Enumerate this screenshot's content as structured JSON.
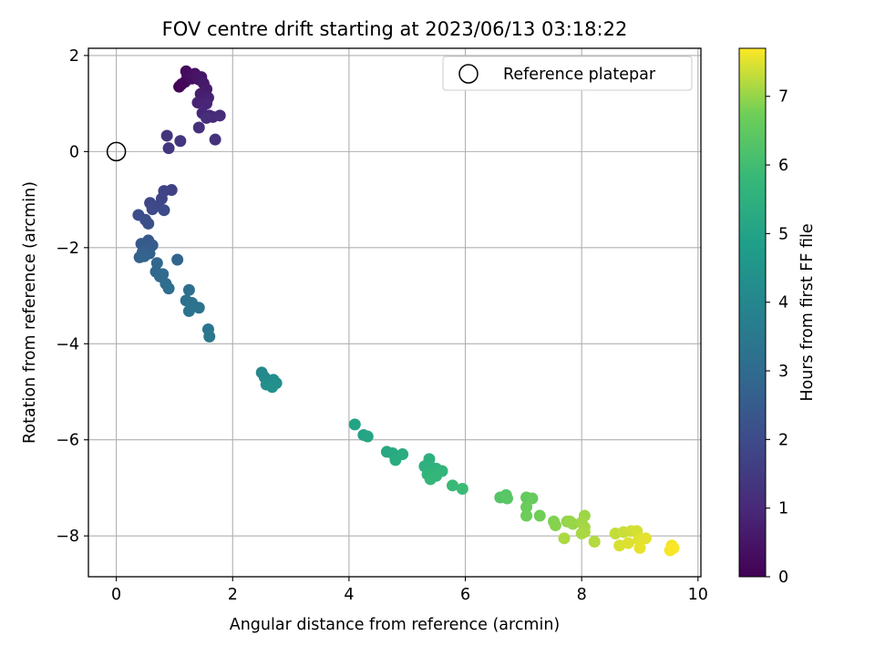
{
  "chart_data": {
    "type": "scatter",
    "title": "FOV centre drift starting at 2023/06/13 03:18:22",
    "xlabel": "Angular distance from reference (arcmin)",
    "ylabel": "Rotation from reference (arcmin)",
    "xlim": [
      -0.48,
      10.05
    ],
    "ylim": [
      -8.85,
      2.15
    ],
    "xticks": [
      0,
      2,
      4,
      6,
      8,
      10
    ],
    "xtick_labels": [
      "0",
      "2",
      "4",
      "6",
      "8",
      "10"
    ],
    "yticks": [
      2,
      0,
      -2,
      -4,
      -6,
      -8
    ],
    "ytick_labels": [
      "2",
      "0",
      "−2",
      "−4",
      "−6",
      "−8"
    ],
    "grid": true,
    "legend": {
      "location": "top-right",
      "entries": [
        "Reference platepar"
      ]
    },
    "reference_point": {
      "x": 0,
      "y": 0,
      "marker": "hollow-circle"
    },
    "colorbar": {
      "label": "Hours from first FF file",
      "colormap": "viridis",
      "range": [
        0,
        7.7
      ],
      "ticks": [
        0,
        1,
        2,
        3,
        4,
        5,
        6,
        7
      ],
      "tick_labels": [
        "0",
        "1",
        "2",
        "3",
        "4",
        "5",
        "6",
        "7"
      ]
    },
    "series": [
      {
        "points": [
          {
            "x": 1.08,
            "y": 1.35,
            "t": 0.05
          },
          {
            "x": 1.12,
            "y": 1.4,
            "t": 0.1
          },
          {
            "x": 1.18,
            "y": 1.45,
            "t": 0.15
          },
          {
            "x": 1.22,
            "y": 1.6,
            "t": 0.2
          },
          {
            "x": 1.2,
            "y": 1.67,
            "t": 0.25
          },
          {
            "x": 1.27,
            "y": 1.58,
            "t": 0.3
          },
          {
            "x": 1.3,
            "y": 1.52,
            "t": 0.35
          },
          {
            "x": 1.35,
            "y": 1.62,
            "t": 0.4
          },
          {
            "x": 1.38,
            "y": 1.57,
            "t": 0.45
          },
          {
            "x": 1.42,
            "y": 1.5,
            "t": 0.5
          },
          {
            "x": 1.46,
            "y": 1.55,
            "t": 0.55
          },
          {
            "x": 1.5,
            "y": 1.42,
            "t": 0.6
          },
          {
            "x": 1.55,
            "y": 1.3,
            "t": 0.65
          },
          {
            "x": 1.45,
            "y": 1.2,
            "t": 0.7
          },
          {
            "x": 1.5,
            "y": 1.1,
            "t": 0.75
          },
          {
            "x": 1.58,
            "y": 1.12,
            "t": 0.8
          },
          {
            "x": 1.4,
            "y": 1.02,
            "t": 0.85
          },
          {
            "x": 1.55,
            "y": 1.0,
            "t": 0.9
          },
          {
            "x": 1.48,
            "y": 0.8,
            "t": 0.95
          },
          {
            "x": 1.6,
            "y": 0.75,
            "t": 1.0
          },
          {
            "x": 1.66,
            "y": 0.72,
            "t": 1.05
          },
          {
            "x": 1.78,
            "y": 0.75,
            "t": 1.1
          },
          {
            "x": 1.55,
            "y": 0.7,
            "t": 1.15
          },
          {
            "x": 1.42,
            "y": 0.5,
            "t": 1.2
          },
          {
            "x": 1.7,
            "y": 0.25,
            "t": 1.25
          },
          {
            "x": 0.87,
            "y": 0.33,
            "t": 1.3
          },
          {
            "x": 1.1,
            "y": 0.22,
            "t": 1.35
          },
          {
            "x": 0.9,
            "y": 0.07,
            "t": 1.4
          },
          {
            "x": 0.95,
            "y": -0.8,
            "t": 1.7
          },
          {
            "x": 0.82,
            "y": -0.82,
            "t": 1.75
          },
          {
            "x": 0.78,
            "y": -0.98,
            "t": 1.8
          },
          {
            "x": 0.58,
            "y": -1.07,
            "t": 1.85
          },
          {
            "x": 0.72,
            "y": -1.13,
            "t": 1.9
          },
          {
            "x": 0.62,
            "y": -1.2,
            "t": 1.95
          },
          {
            "x": 0.82,
            "y": -1.22,
            "t": 2.0
          },
          {
            "x": 0.38,
            "y": -1.32,
            "t": 2.05
          },
          {
            "x": 0.5,
            "y": -1.42,
            "t": 2.1
          },
          {
            "x": 0.55,
            "y": -1.5,
            "t": 2.15
          },
          {
            "x": 0.55,
            "y": -1.85,
            "t": 2.4
          },
          {
            "x": 0.43,
            "y": -1.92,
            "t": 2.45
          },
          {
            "x": 0.62,
            "y": -1.95,
            "t": 2.5
          },
          {
            "x": 0.5,
            "y": -2.0,
            "t": 2.55
          },
          {
            "x": 0.45,
            "y": -2.1,
            "t": 2.6
          },
          {
            "x": 0.57,
            "y": -2.12,
            "t": 2.65
          },
          {
            "x": 0.4,
            "y": -2.2,
            "t": 2.7
          },
          {
            "x": 0.48,
            "y": -2.18,
            "t": 2.75
          },
          {
            "x": 1.05,
            "y": -2.25,
            "t": 2.8
          },
          {
            "x": 0.7,
            "y": -2.32,
            "t": 2.85
          },
          {
            "x": 0.68,
            "y": -2.5,
            "t": 2.9
          },
          {
            "x": 0.8,
            "y": -2.55,
            "t": 2.95
          },
          {
            "x": 0.75,
            "y": -2.6,
            "t": 3.0
          },
          {
            "x": 0.85,
            "y": -2.75,
            "t": 3.05
          },
          {
            "x": 0.9,
            "y": -2.85,
            "t": 3.1
          },
          {
            "x": 1.25,
            "y": -2.88,
            "t": 3.15
          },
          {
            "x": 1.2,
            "y": -3.1,
            "t": 3.2
          },
          {
            "x": 1.3,
            "y": -3.15,
            "t": 3.25
          },
          {
            "x": 1.42,
            "y": -3.25,
            "t": 3.3
          },
          {
            "x": 1.25,
            "y": -3.32,
            "t": 3.35
          },
          {
            "x": 1.58,
            "y": -3.7,
            "t": 3.4
          },
          {
            "x": 1.6,
            "y": -3.85,
            "t": 3.45
          },
          {
            "x": 2.5,
            "y": -4.6,
            "t": 4.05
          },
          {
            "x": 2.55,
            "y": -4.7,
            "t": 4.1
          },
          {
            "x": 2.62,
            "y": -4.8,
            "t": 4.15
          },
          {
            "x": 2.7,
            "y": -4.75,
            "t": 4.2
          },
          {
            "x": 2.58,
            "y": -4.85,
            "t": 4.25
          },
          {
            "x": 2.75,
            "y": -4.82,
            "t": 4.3
          },
          {
            "x": 2.68,
            "y": -4.9,
            "t": 4.35
          },
          {
            "x": 4.1,
            "y": -5.68,
            "t": 5.0
          },
          {
            "x": 4.25,
            "y": -5.9,
            "t": 5.05
          },
          {
            "x": 4.32,
            "y": -5.93,
            "t": 5.1
          },
          {
            "x": 4.65,
            "y": -6.25,
            "t": 5.2
          },
          {
            "x": 4.75,
            "y": -6.28,
            "t": 5.25
          },
          {
            "x": 4.92,
            "y": -6.3,
            "t": 5.3
          },
          {
            "x": 4.8,
            "y": -6.42,
            "t": 5.35
          },
          {
            "x": 5.38,
            "y": -6.4,
            "t": 5.45
          },
          {
            "x": 5.3,
            "y": -6.55,
            "t": 5.5
          },
          {
            "x": 5.42,
            "y": -6.58,
            "t": 5.55
          },
          {
            "x": 5.5,
            "y": -6.6,
            "t": 5.6
          },
          {
            "x": 5.6,
            "y": -6.65,
            "t": 5.65
          },
          {
            "x": 5.35,
            "y": -6.72,
            "t": 5.7
          },
          {
            "x": 5.5,
            "y": -6.75,
            "t": 5.72
          },
          {
            "x": 5.4,
            "y": -6.82,
            "t": 5.75
          },
          {
            "x": 5.78,
            "y": -6.95,
            "t": 5.85
          },
          {
            "x": 5.95,
            "y": -7.02,
            "t": 5.9
          },
          {
            "x": 6.6,
            "y": -7.2,
            "t": 6.3
          },
          {
            "x": 6.7,
            "y": -7.15,
            "t": 6.35
          },
          {
            "x": 6.72,
            "y": -7.22,
            "t": 6.4
          },
          {
            "x": 7.05,
            "y": -7.2,
            "t": 6.55
          },
          {
            "x": 7.15,
            "y": -7.22,
            "t": 6.6
          },
          {
            "x": 7.05,
            "y": -7.4,
            "t": 6.65
          },
          {
            "x": 7.05,
            "y": -7.58,
            "t": 6.7
          },
          {
            "x": 7.28,
            "y": -7.58,
            "t": 6.75
          },
          {
            "x": 7.52,
            "y": -7.7,
            "t": 6.85
          },
          {
            "x": 7.55,
            "y": -7.78,
            "t": 6.9
          },
          {
            "x": 7.75,
            "y": -7.7,
            "t": 6.95
          },
          {
            "x": 7.85,
            "y": -7.75,
            "t": 7.0
          },
          {
            "x": 7.8,
            "y": -7.7,
            "t": 7.02
          },
          {
            "x": 8.05,
            "y": -7.58,
            "t": 7.05
          },
          {
            "x": 8.0,
            "y": -7.72,
            "t": 7.08
          },
          {
            "x": 8.05,
            "y": -7.82,
            "t": 7.1
          },
          {
            "x": 8.0,
            "y": -7.95,
            "t": 7.12
          },
          {
            "x": 8.05,
            "y": -7.92,
            "t": 7.14
          },
          {
            "x": 7.7,
            "y": -8.05,
            "t": 7.15
          },
          {
            "x": 8.22,
            "y": -8.12,
            "t": 7.2
          },
          {
            "x": 8.58,
            "y": -7.95,
            "t": 7.3
          },
          {
            "x": 8.72,
            "y": -7.92,
            "t": 7.35
          },
          {
            "x": 8.85,
            "y": -7.9,
            "t": 7.4
          },
          {
            "x": 8.95,
            "y": -7.9,
            "t": 7.42
          },
          {
            "x": 8.65,
            "y": -8.2,
            "t": 7.45
          },
          {
            "x": 8.8,
            "y": -8.15,
            "t": 7.48
          },
          {
            "x": 8.98,
            "y": -8.08,
            "t": 7.5
          },
          {
            "x": 9.1,
            "y": -8.05,
            "t": 7.52
          },
          {
            "x": 9.0,
            "y": -8.25,
            "t": 7.55
          },
          {
            "x": 9.55,
            "y": -8.2,
            "t": 7.62
          },
          {
            "x": 9.52,
            "y": -8.3,
            "t": 7.65
          },
          {
            "x": 9.58,
            "y": -8.25,
            "t": 7.68
          }
        ]
      }
    ]
  }
}
